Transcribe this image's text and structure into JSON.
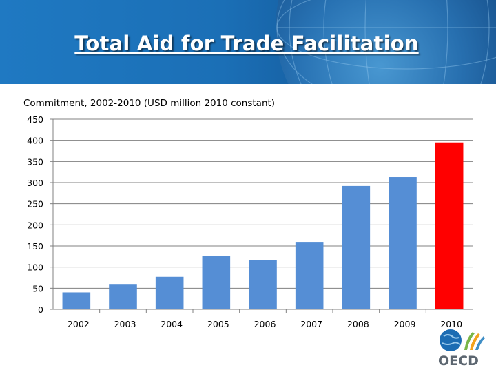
{
  "title": "Total Aid for Trade Facilitation",
  "logo": {
    "text": "OECD"
  },
  "colors": {
    "bar": "#558ed5",
    "highlight": "#ff0000",
    "banner": "#1b6fb6",
    "axis": "#808080"
  },
  "chart_data": {
    "type": "bar",
    "subtitle": "Commitment, 2002-2010 (USD million 2010 constant)",
    "categories": [
      "2002",
      "2003",
      "2004",
      "2005",
      "2006",
      "2007",
      "2008",
      "2009",
      "2010"
    ],
    "values": [
      40,
      60,
      77,
      126,
      116,
      158,
      292,
      313,
      395
    ],
    "highlight_category": "2010",
    "ylim": [
      0,
      450
    ],
    "yticks": [
      0,
      50,
      100,
      150,
      200,
      250,
      300,
      350,
      400,
      450
    ],
    "grid": true,
    "xlabel": "",
    "ylabel": ""
  }
}
